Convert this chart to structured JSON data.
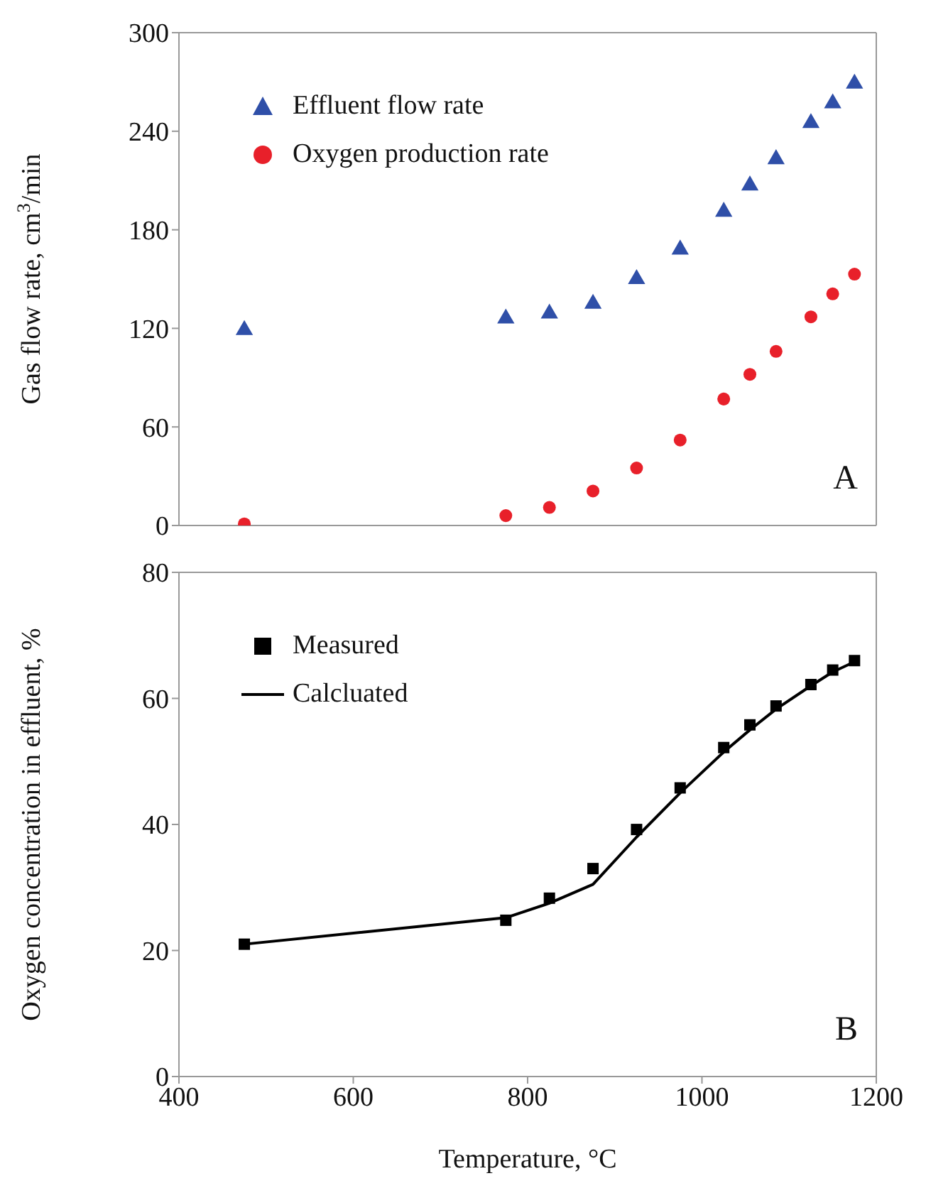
{
  "chart_data": [
    {
      "type": "scatter",
      "ylabel": "Gas flow rate, cm$^{3}$/min",
      "x": [
        475,
        775,
        825,
        875,
        925,
        975,
        1025,
        1055,
        1085,
        1125,
        1150,
        1175
      ],
      "xlim": [
        400,
        1200
      ],
      "xticks": [
        400,
        600,
        800,
        1000,
        1200
      ],
      "ylim": [
        0,
        300
      ],
      "yticks": [
        0,
        60,
        120,
        180,
        240,
        300
      ],
      "tick_labels": "y",
      "legend": "top left",
      "annotations": [
        "A"
      ],
      "series": [
        {
          "name": "Effluent flow rate",
          "color": "#2f4fa8",
          "marker": "triangle",
          "values": [
            119,
            126,
            129,
            135,
            150,
            168,
            191,
            207,
            223,
            245,
            257,
            269
          ]
        },
        {
          "name": "Oxygen production rate",
          "color": "#e8202a",
          "marker": "circle",
          "values": [
            1,
            6,
            11,
            21,
            35,
            52,
            77,
            92,
            106,
            127,
            141,
            153
          ]
        }
      ]
    },
    {
      "type": "scatter",
      "xlabel": "Temperature, °C",
      "ylabel": "Oxygen concentration in effluent, %",
      "x": [
        475,
        775,
        825,
        875,
        925,
        975,
        1025,
        1055,
        1085,
        1125,
        1150,
        1175
      ],
      "xlim": [
        400,
        1200
      ],
      "xticks": [
        400,
        600,
        800,
        1000,
        1200
      ],
      "ylim": [
        0,
        80
      ],
      "yticks": [
        0,
        20,
        40,
        60,
        80
      ],
      "legend": "top left",
      "annotations": [
        "B"
      ],
      "series": [
        {
          "name": "Measured",
          "color": "#000000",
          "marker": "square",
          "values": [
            21,
            24.8,
            28.3,
            33,
            39.2,
            45.8,
            52.2,
            55.8,
            58.8,
            62.2,
            64.5,
            66
          ]
        },
        {
          "name": "Calcluated",
          "type": "line",
          "color": "#000000",
          "marker": "none",
          "line_style": "solid",
          "values": [
            21,
            25.2,
            27.5,
            30.5,
            38,
            45,
            51.5,
            55,
            58.3,
            62,
            64.2,
            65.8
          ]
        }
      ]
    }
  ]
}
